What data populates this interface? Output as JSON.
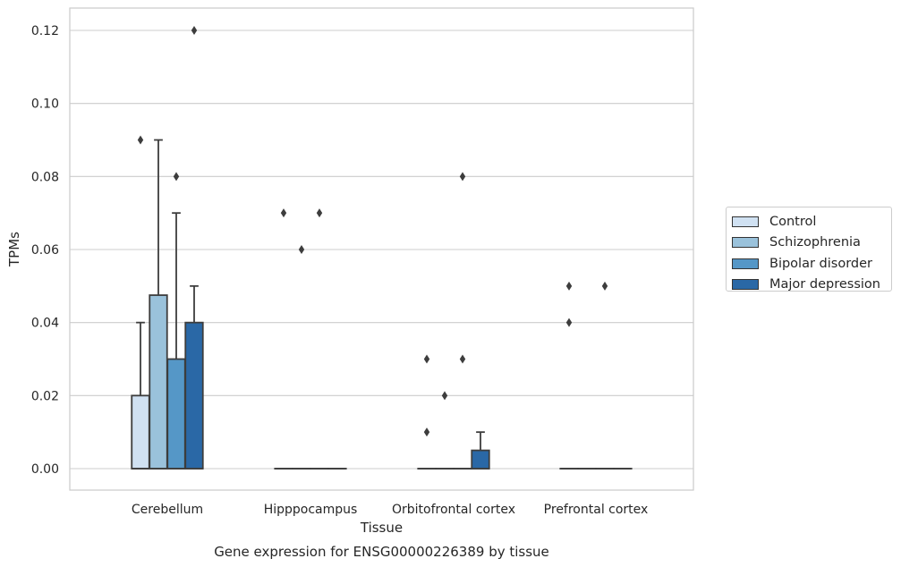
{
  "chart_data": {
    "type": "box",
    "title": "Gene expression for ENSG00000226389 by tissue",
    "xlabel": "Tissue",
    "ylabel": "TPMs",
    "ylim": [
      -0.006,
      0.126
    ],
    "yticks": [
      0.0,
      0.02,
      0.04,
      0.06,
      0.08,
      0.1,
      0.12
    ],
    "ytick_labels": [
      "0.00",
      "0.02",
      "0.04",
      "0.06",
      "0.08",
      "0.10",
      "0.12"
    ],
    "grid": "horizontal",
    "legend_position": "right",
    "categories": [
      "Cerebellum",
      "Hipppocampus",
      "Orbitofrontal cortex",
      "Prefrontal cortex"
    ],
    "series": [
      {
        "name": "Control",
        "color": "#d0e1f2",
        "boxes": [
          {
            "q1": 0.0,
            "median": 0.0,
            "q3": 0.02,
            "whisker_low": 0.0,
            "whisker_high": 0.04,
            "outliers": [
              0.09
            ]
          },
          {
            "q1": 0.0,
            "median": 0.0,
            "q3": 0.0,
            "whisker_low": 0.0,
            "whisker_high": 0.0,
            "outliers": [
              0.07
            ]
          },
          {
            "q1": 0.0,
            "median": 0.0,
            "q3": 0.0,
            "whisker_low": 0.0,
            "whisker_high": 0.0,
            "outliers": [
              0.03,
              0.01
            ]
          },
          {
            "q1": 0.0,
            "median": 0.0,
            "q3": 0.0,
            "whisker_low": 0.0,
            "whisker_high": 0.0,
            "outliers": [
              0.05,
              0.04
            ]
          }
        ]
      },
      {
        "name": "Schizophrenia",
        "color": "#9ac2db",
        "boxes": [
          {
            "q1": 0.0,
            "median": 0.0,
            "q3": 0.0475,
            "whisker_low": 0.0,
            "whisker_high": 0.09,
            "outliers": []
          },
          {
            "q1": 0.0,
            "median": 0.0,
            "q3": 0.0,
            "whisker_low": 0.0,
            "whisker_high": 0.0,
            "outliers": [
              0.06
            ]
          },
          {
            "q1": 0.0,
            "median": 0.0,
            "q3": 0.0,
            "whisker_low": 0.0,
            "whisker_high": 0.0,
            "outliers": [
              0.02
            ]
          },
          {
            "q1": 0.0,
            "median": 0.0,
            "q3": 0.0,
            "whisker_low": 0.0,
            "whisker_high": 0.0,
            "outliers": []
          }
        ]
      },
      {
        "name": "Bipolar disorder",
        "color": "#5597c7",
        "boxes": [
          {
            "q1": 0.0,
            "median": 0.0,
            "q3": 0.03,
            "whisker_low": 0.0,
            "whisker_high": 0.07,
            "outliers": [
              0.08
            ]
          },
          {
            "q1": 0.0,
            "median": 0.0,
            "q3": 0.0,
            "whisker_low": 0.0,
            "whisker_high": 0.0,
            "outliers": [
              0.07
            ]
          },
          {
            "q1": 0.0,
            "median": 0.0,
            "q3": 0.0,
            "whisker_low": 0.0,
            "whisker_high": 0.0,
            "outliers": [
              0.03,
              0.08
            ]
          },
          {
            "q1": 0.0,
            "median": 0.0,
            "q3": 0.0,
            "whisker_low": 0.0,
            "whisker_high": 0.0,
            "outliers": [
              0.05
            ]
          }
        ]
      },
      {
        "name": "Major depression",
        "color": "#2a68a6",
        "boxes": [
          {
            "q1": 0.0,
            "median": 0.0,
            "q3": 0.04,
            "whisker_low": 0.0,
            "whisker_high": 0.05,
            "outliers": [
              0.12
            ]
          },
          {
            "q1": 0.0,
            "median": 0.0,
            "q3": 0.0,
            "whisker_low": 0.0,
            "whisker_high": 0.0,
            "outliers": []
          },
          {
            "q1": 0.0,
            "median": 0.0,
            "q3": 0.005,
            "whisker_low": 0.0,
            "whisker_high": 0.01,
            "outliers": []
          },
          {
            "q1": 0.0,
            "median": 0.0,
            "q3": 0.0,
            "whisker_low": 0.0,
            "whisker_high": 0.0,
            "outliers": []
          }
        ]
      }
    ]
  }
}
